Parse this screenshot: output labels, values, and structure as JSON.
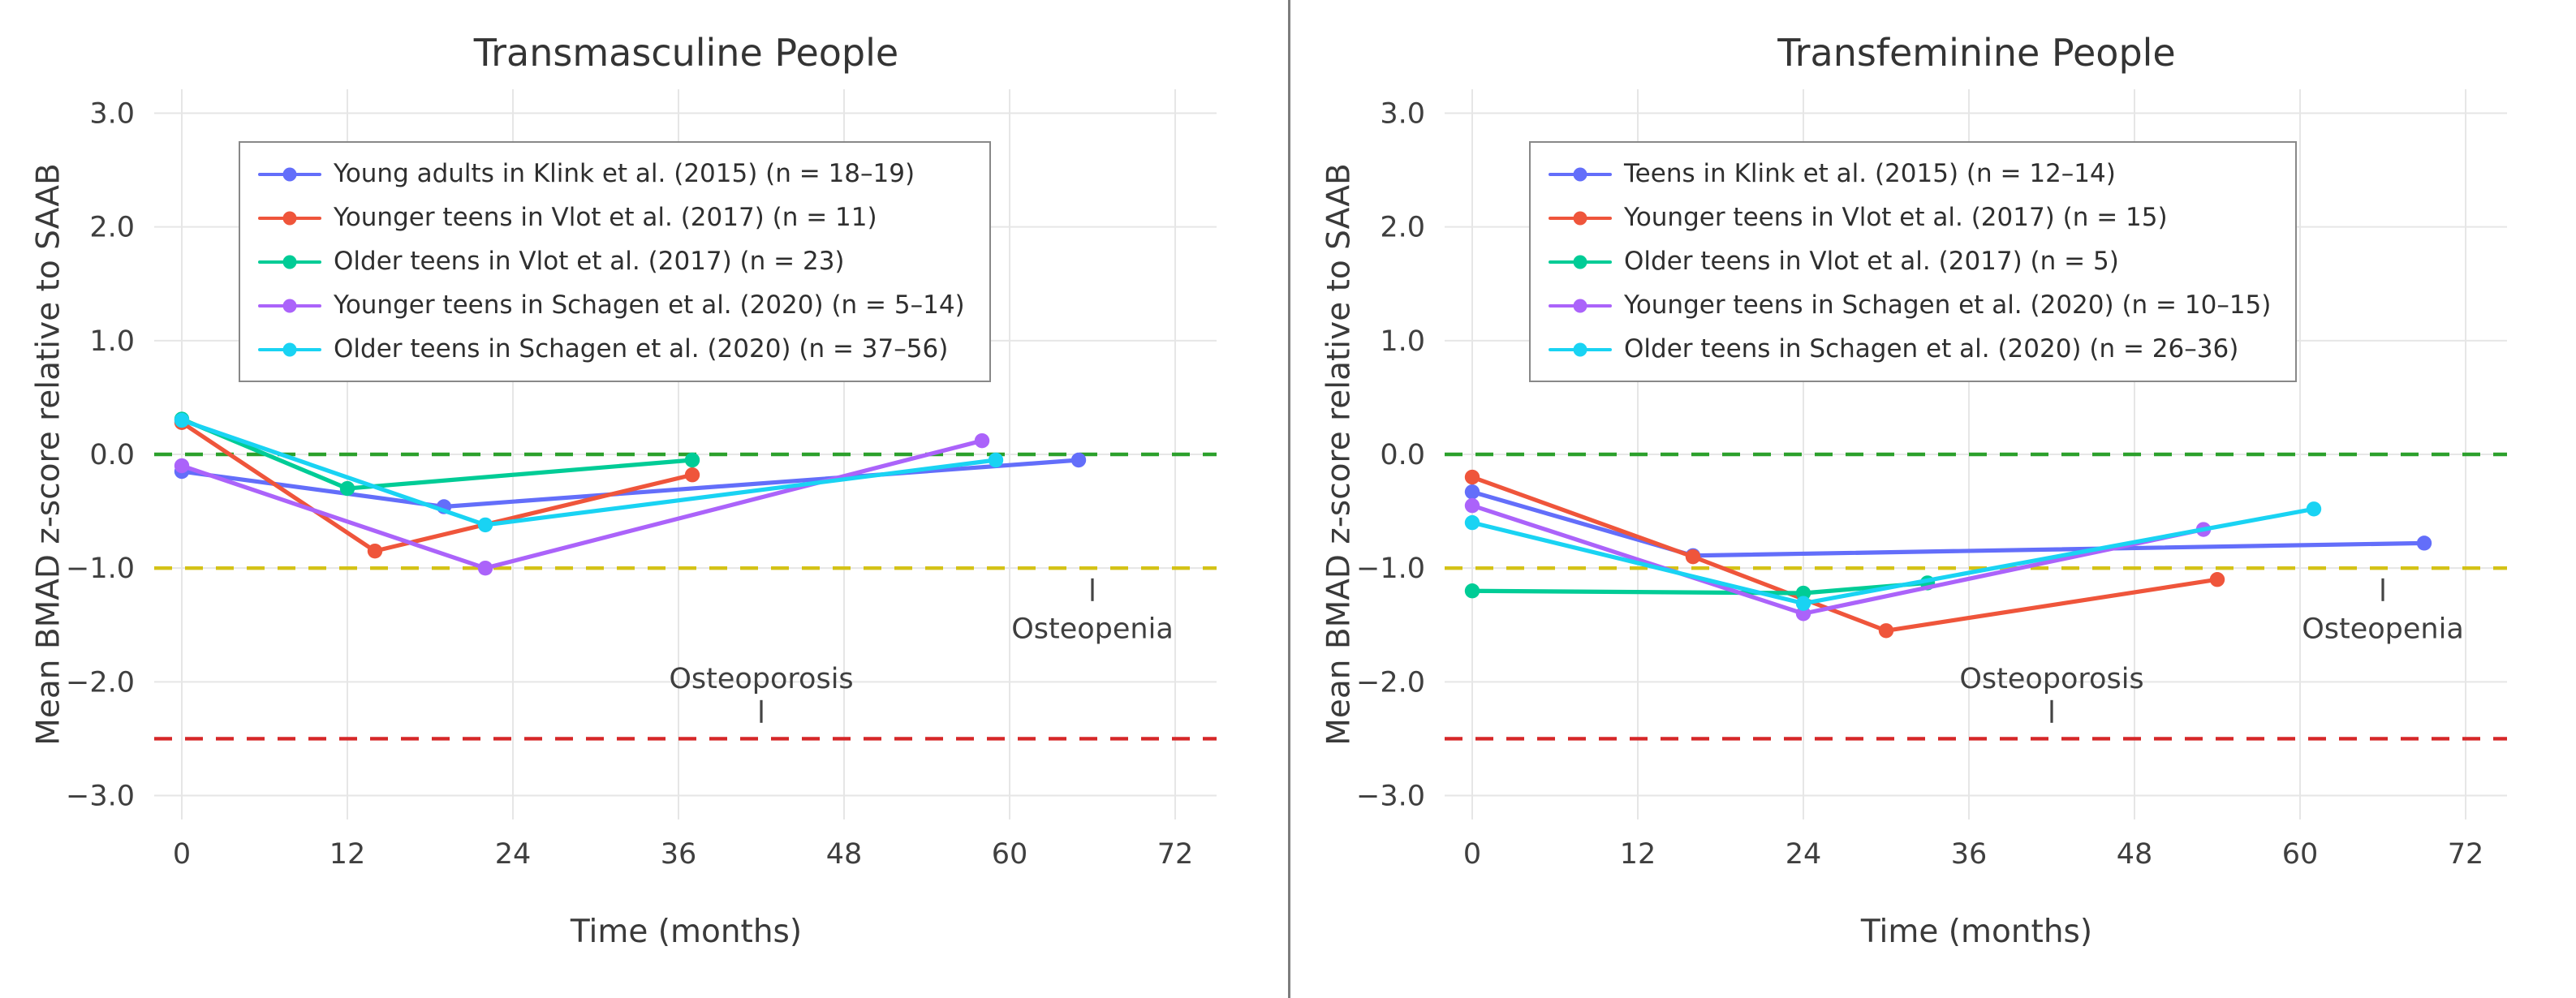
{
  "figure": {
    "background": "#ffffff",
    "divider_color": "#7d7d7d"
  },
  "shared": {
    "text_color": "#3f3f3f",
    "title_color": "#343434",
    "grid_color": "#e6e6e6",
    "legend_border_color": "#888888",
    "annotation_tick_color": "#444444"
  },
  "chart_data": [
    {
      "type": "line",
      "title": "Transmasculine People",
      "xlabel": "Time (months)",
      "ylabel": "Mean BMAD z-score relative to SAAB",
      "xlim": [
        -2,
        75
      ],
      "ylim": [
        -3.21,
        3.21
      ],
      "xticks": [
        0,
        12,
        24,
        36,
        48,
        60,
        72
      ],
      "yticks": [
        3.0,
        2.0,
        1.0,
        0.0,
        -1.0,
        -2.0,
        -3.0
      ],
      "grid": true,
      "legend_position": "top-left",
      "series": [
        {
          "name": "Young adults in Klink et al. (2015) (n = 18–19)",
          "color": "#636EFA",
          "x": [
            0,
            19,
            65
          ],
          "y": [
            -0.15,
            -0.46,
            -0.05
          ]
        },
        {
          "name": "Younger teens in Vlot et al. (2017) (n = 11)",
          "color": "#EF553B",
          "x": [
            0,
            14,
            37
          ],
          "y": [
            0.28,
            -0.85,
            -0.18
          ]
        },
        {
          "name": "Older teens in Vlot et al. (2017) (n = 23)",
          "color": "#00CC96",
          "x": [
            0,
            12,
            37
          ],
          "y": [
            0.31,
            -0.3,
            -0.05
          ]
        },
        {
          "name": "Younger teens in Schagen et al. (2020) (n = 5–14)",
          "color": "#AB63FA",
          "x": [
            0,
            22,
            58
          ],
          "y": [
            -0.1,
            -1.0,
            0.12
          ]
        },
        {
          "name": "Older teens in Schagen et al. (2020) (n = 37–56)",
          "color": "#19D3F3",
          "x": [
            0,
            22,
            59
          ],
          "y": [
            0.3,
            -0.62,
            -0.05
          ]
        }
      ],
      "reference_lines": [
        {
          "label": "normal",
          "y": 0.0,
          "color": "#2CA02C"
        },
        {
          "label": "osteopenia-threshold",
          "y": -1.0,
          "color": "#D4C216"
        },
        {
          "label": "osteoporosis-threshold",
          "y": -2.5,
          "color": "#D62728"
        }
      ],
      "annotations": [
        {
          "text": "Osteopenia",
          "x": 66,
          "y": -1.53,
          "tick_x": 66,
          "tick_y": -1.19
        },
        {
          "text": "Osteoporosis",
          "x": 42,
          "y": -1.97,
          "tick_x": 42,
          "tick_y": -2.26
        }
      ]
    },
    {
      "type": "line",
      "title": "Transfeminine People",
      "xlabel": "Time (months)",
      "ylabel": "Mean BMAD z-score relative to SAAB",
      "xlim": [
        -2,
        75
      ],
      "ylim": [
        -3.21,
        3.21
      ],
      "xticks": [
        0,
        12,
        24,
        36,
        48,
        60,
        72
      ],
      "yticks": [
        3.0,
        2.0,
        1.0,
        0.0,
        -1.0,
        -2.0,
        -3.0
      ],
      "grid": true,
      "legend_position": "top-left",
      "series": [
        {
          "name": "Teens in Klink et al. (2015) (n = 12–14)",
          "color": "#636EFA",
          "x": [
            0,
            16,
            69
          ],
          "y": [
            -0.33,
            -0.89,
            -0.78
          ]
        },
        {
          "name": "Younger teens in Vlot et al. (2017) (n = 15)",
          "color": "#EF553B",
          "x": [
            0,
            16,
            30,
            54
          ],
          "y": [
            -0.2,
            -0.9,
            -1.55,
            -1.1
          ]
        },
        {
          "name": "Older teens in Vlot et al. (2017) (n = 5)",
          "color": "#00CC96",
          "x": [
            0,
            24,
            33
          ],
          "y": [
            -1.2,
            -1.22,
            -1.13
          ]
        },
        {
          "name": "Younger teens in Schagen et al. (2020) (n = 10–15)",
          "color": "#AB63FA",
          "x": [
            0,
            24,
            53
          ],
          "y": [
            -0.45,
            -1.4,
            -0.66
          ]
        },
        {
          "name": "Older teens in Schagen et al. (2020) (n = 26–36)",
          "color": "#19D3F3",
          "x": [
            0,
            24,
            61
          ],
          "y": [
            -0.6,
            -1.31,
            -0.48
          ]
        }
      ],
      "reference_lines": [
        {
          "label": "normal",
          "y": 0.0,
          "color": "#2CA02C"
        },
        {
          "label": "osteopenia-threshold",
          "y": -1.0,
          "color": "#D4C216"
        },
        {
          "label": "osteoporosis-threshold",
          "y": -2.5,
          "color": "#D62728"
        }
      ],
      "annotations": [
        {
          "text": "Osteopenia",
          "x": 66,
          "y": -1.53,
          "tick_x": 66,
          "tick_y": -1.19
        },
        {
          "text": "Osteoporosis",
          "x": 42,
          "y": -1.97,
          "tick_x": 42,
          "tick_y": -2.26
        }
      ]
    }
  ]
}
